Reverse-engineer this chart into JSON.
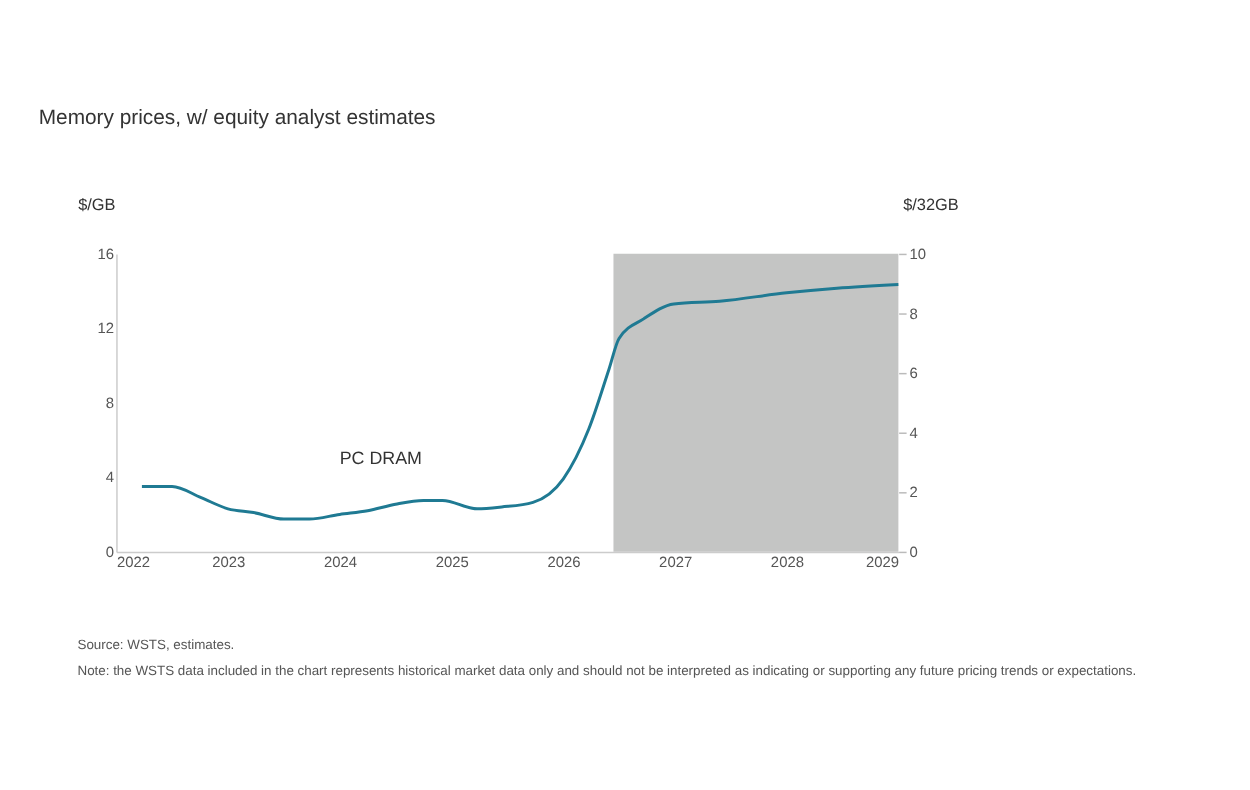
{
  "chart_data": {
    "type": "line",
    "title": "Memory prices, w/ equity analyst estimates",
    "ylabel": "$/GB",
    "y2label": "$/32GB",
    "x": [
      2022.23,
      2022.5,
      2022.76,
      2023.0,
      2023.23,
      2023.5,
      2023.73,
      2024.0,
      2024.25,
      2024.5,
      2024.75,
      2024.92,
      2025.23,
      2025.45,
      2025.73,
      2026.0,
      2026.23,
      2026.41,
      2026.5,
      2026.72,
      2026.99,
      2027.4,
      2028.0,
      2028.45,
      2029.0
    ],
    "series": [
      {
        "name": "PC DRAM",
        "color": "#1f7a93",
        "values": [
          3.5,
          3.5,
          2.9,
          2.3,
          2.1,
          1.75,
          1.75,
          2.0,
          2.2,
          2.55,
          2.75,
          2.75,
          2.3,
          2.4,
          2.65,
          3.9,
          6.6,
          9.8,
          11.45,
          12.5,
          13.3,
          13.45,
          13.9,
          14.15,
          14.35
        ]
      }
    ],
    "xlim": [
      2022,
      2029
    ],
    "xticks": [
      2022,
      2023,
      2024,
      2025,
      2026,
      2027,
      2028,
      2029
    ],
    "ylim": [
      0,
      16
    ],
    "yticks": [
      0,
      4,
      8,
      12,
      16
    ],
    "y2lim": [
      0,
      10
    ],
    "y2ticks": [
      0,
      2,
      4,
      6,
      8,
      10
    ],
    "bands": [
      {
        "axis": "x",
        "from": 2026.45,
        "to": 2029,
        "color": "#c4c5c4"
      }
    ],
    "grid": false,
    "legend": false,
    "annotations": [
      "Source: WSTS, estimates.",
      "Note: the WSTS data included in the chart represents historical market data only and should not be interpreted as indicating or supporting any future pricing trends or expectations."
    ]
  }
}
